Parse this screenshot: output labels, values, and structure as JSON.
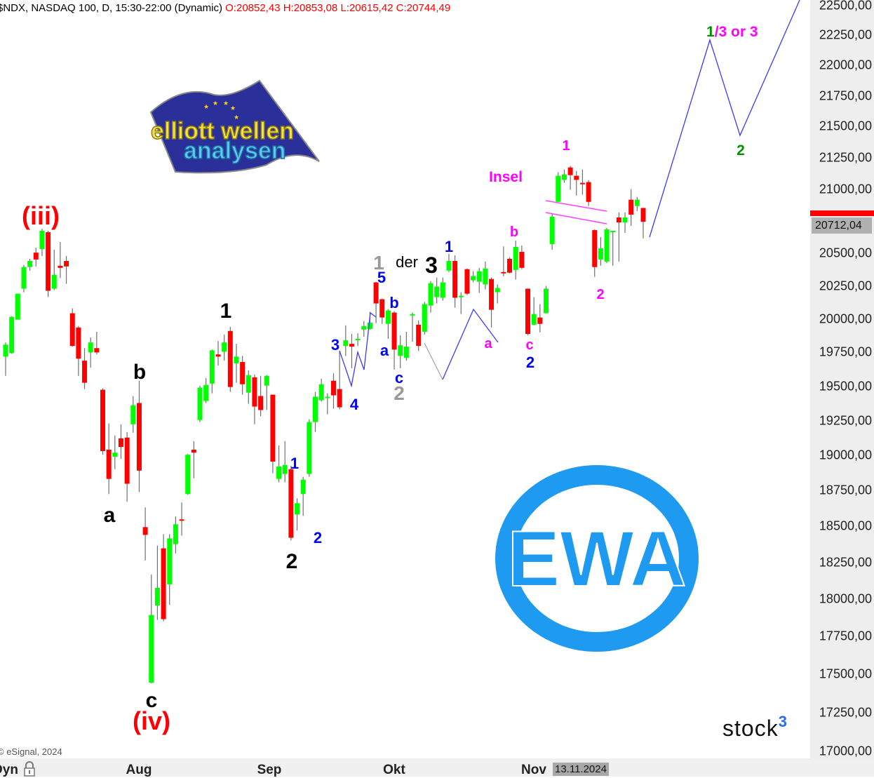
{
  "header": {
    "symbol": "$NDX, NASDAQ 100, D, 15:30-22:00 (Dynamic)",
    "ohlc": "O:20852,43 H:20853,08 L:20615,42 C:20744,49"
  },
  "price_axis": {
    "labels": [
      "22500,00",
      "22250,00",
      "22000,00",
      "21750,00",
      "21500,00",
      "21250,00",
      "21000,00",
      "20500,00",
      "20250,00",
      "20000,00",
      "19750,00",
      "19500,00",
      "19250,00",
      "19000,00",
      "18750,00",
      "18500,00",
      "18250,00",
      "18000,00",
      "17750,00",
      "17500,00",
      "17250,00",
      "17000,00"
    ],
    "last_price": "20712,04"
  },
  "time_axis": {
    "mode": "Dyn",
    "months": [
      "Aug",
      "Sep",
      "Okt",
      "Nov"
    ],
    "cursor_date": "13.11.2024"
  },
  "copyright": "© eSignal, 2024",
  "branding": {
    "logo_text": "elliott wellen analysen",
    "ewa_logo": "EWA",
    "stock3": "stock",
    "stock3_sup": "3"
  },
  "colors": {
    "up": "#00ff00",
    "down": "#ff0000",
    "wick": "#707070",
    "blue": "#0000ff",
    "magenta": "#ff00ff",
    "green": "#009000",
    "gray": "#999999",
    "red": "#ff0000"
  },
  "annotations": {
    "iii": "(iii)",
    "iv": "(iv)",
    "b_black": "b",
    "a_black": "a",
    "c_black": "c",
    "one_black": "1",
    "two_black": "2",
    "one_blue_a": "1",
    "two_blue_a": "2",
    "three_blue": "3",
    "four_blue": "4",
    "five_blue": "5",
    "one_gray": "1",
    "der": "der",
    "three_black": "3",
    "one_blue_b": "1",
    "b_blue": "b",
    "a_blue": "a",
    "c_blue": "c",
    "two_gray": "2",
    "a_magenta": "a",
    "b_magenta": "b",
    "c_magenta": "c",
    "two_blue_b": "2",
    "one_magenta": "1",
    "insel": "Insel",
    "two_magenta": "2",
    "one_green": "1",
    "three_or_three": "/3 or 3",
    "two_green": "2"
  },
  "chart_data": {
    "type": "candlestick",
    "title": "$NDX, NASDAQ 100, D",
    "y_scale": "log",
    "ylim": [
      17000,
      22500
    ],
    "grid": false,
    "x_ticks": [
      "Aug",
      "Sep",
      "Okt",
      "Nov"
    ],
    "ohlc_order": [
      "open",
      "high",
      "low",
      "close"
    ],
    "candles": [
      [
        19719,
        19824,
        19577,
        19808
      ],
      [
        19745,
        20021,
        19740,
        20016
      ],
      [
        19995,
        20191,
        19995,
        20191
      ],
      [
        20229,
        20410,
        20202,
        20394
      ],
      [
        20394,
        20457,
        20367,
        20441
      ],
      [
        20505,
        20543,
        20399,
        20452
      ],
      [
        20533,
        20690,
        20479,
        20674
      ],
      [
        20663,
        20674,
        20165,
        20213
      ],
      [
        20229,
        20527,
        20218,
        20335
      ],
      [
        20404,
        20587,
        20309,
        20388
      ],
      [
        20441,
        20479,
        20266,
        20399
      ],
      [
        20043,
        20080,
        19793,
        19798
      ],
      [
        19936,
        19947,
        19577,
        19704
      ],
      [
        19689,
        19782,
        19480,
        19526
      ],
      [
        19750,
        19862,
        19638,
        19824
      ],
      [
        19782,
        19904,
        19735,
        19750
      ],
      [
        19475,
        19485,
        19005,
        19031
      ],
      [
        19041,
        19230,
        18726,
        18833
      ],
      [
        18990,
        19143,
        18902,
        19020
      ],
      [
        19122,
        19224,
        18976,
        19061
      ],
      [
        19128,
        19168,
        18672,
        18799
      ],
      [
        19224,
        19429,
        19163,
        19362
      ],
      [
        19378,
        19541,
        18740,
        18892
      ],
      [
        18495,
        18632,
        18265,
        18441
      ],
      [
        17445,
        18168,
        17440,
        17894
      ],
      [
        17958,
        18368,
        17861,
        18077
      ],
      [
        18348,
        18446,
        17852,
        17866
      ],
      [
        18101,
        18446,
        17963,
        18417
      ],
      [
        18377,
        18569,
        18313,
        18515
      ],
      [
        18549,
        18667,
        18436,
        18539
      ],
      [
        18726,
        19010,
        18721,
        19005
      ],
      [
        19041,
        19102,
        18838,
        19020
      ],
      [
        19255,
        19505,
        19240,
        19490
      ],
      [
        19393,
        19561,
        19378,
        19510
      ],
      [
        19520,
        19771,
        19449,
        19766
      ],
      [
        19735,
        19835,
        19653,
        19719
      ],
      [
        19755,
        19883,
        19689,
        19824
      ],
      [
        19910,
        19941,
        19459,
        19495
      ],
      [
        19669,
        19814,
        19526,
        19719
      ],
      [
        19679,
        19724,
        19439,
        19515
      ],
      [
        19454,
        19617,
        19372,
        19582
      ],
      [
        19566,
        19587,
        19224,
        19352
      ],
      [
        19429,
        19577,
        19281,
        19327
      ],
      [
        19505,
        19582,
        19327,
        19577
      ],
      [
        19439,
        19439,
        18873,
        18956
      ],
      [
        18833,
        19071,
        18809,
        18922
      ],
      [
        18868,
        19102,
        18809,
        18932
      ],
      [
        18902,
        18926,
        18402,
        18421
      ],
      [
        18583,
        18696,
        18471,
        18662
      ],
      [
        18726,
        18848,
        18574,
        18828
      ],
      [
        18868,
        19260,
        18848,
        19240
      ],
      [
        19240,
        19459,
        19168,
        19424
      ],
      [
        19398,
        19556,
        19388,
        19515
      ],
      [
        19414,
        19449,
        19296,
        19424
      ],
      [
        19541,
        19597,
        19337,
        19434
      ],
      [
        19480,
        19760,
        19332,
        19347
      ],
      [
        19798,
        19952,
        19724,
        19840
      ],
      [
        19814,
        19888,
        19633,
        19793
      ],
      [
        19840,
        19893,
        19798,
        19851
      ],
      [
        19920,
        19984,
        19867,
        19947
      ],
      [
        19925,
        20053,
        19920,
        19973
      ],
      [
        20277,
        20282,
        19968,
        20117
      ],
      [
        20149,
        20154,
        19963,
        20011
      ],
      [
        19963,
        20074,
        19851,
        20064
      ],
      [
        20048,
        20059,
        19623,
        19771
      ],
      [
        19724,
        19878,
        19633,
        19803
      ],
      [
        19709,
        19904,
        19689,
        19793
      ],
      [
        20027,
        20048,
        19830,
        20037
      ],
      [
        19957,
        19989,
        19760,
        19798
      ],
      [
        19904,
        20128,
        19883,
        20112
      ],
      [
        20101,
        20287,
        20048,
        20271
      ],
      [
        20165,
        20314,
        20117,
        20245
      ],
      [
        20160,
        20314,
        20138,
        20277
      ],
      [
        20367,
        20495,
        20356,
        20441
      ],
      [
        20441,
        20484,
        20085,
        20160
      ],
      [
        20170,
        20202,
        20037,
        20175
      ],
      [
        20378,
        20383,
        20181,
        20191
      ],
      [
        20293,
        20362,
        20277,
        20325
      ],
      [
        20282,
        20388,
        20197,
        20362
      ],
      [
        20261,
        20436,
        20223,
        20383
      ],
      [
        20303,
        20314,
        19936,
        20069
      ],
      [
        20202,
        20261,
        20117,
        20234
      ],
      [
        20356,
        20553,
        20324,
        20346
      ],
      [
        20457,
        20468,
        20346,
        20351
      ],
      [
        20372,
        20597,
        20298,
        20549
      ],
      [
        20511,
        20560,
        20378,
        20388
      ],
      [
        20229,
        20229,
        19878,
        19888
      ],
      [
        19957,
        20165,
        19952,
        20037
      ],
      [
        20011,
        20112,
        19899,
        19963
      ],
      [
        20043,
        20250,
        20043,
        20229
      ],
      [
        20571,
        20806,
        20527,
        20784
      ],
      [
        20900,
        21134,
        20900,
        21106
      ],
      [
        21073,
        21156,
        21050,
        21117
      ],
      [
        21172,
        21184,
        20995,
        21111
      ],
      [
        21106,
        21145,
        20950,
        21073
      ],
      [
        21050,
        21156,
        20956,
        21039
      ],
      [
        21056,
        21072,
        20867,
        20900
      ],
      [
        20679,
        20685,
        20319,
        20394
      ],
      [
        20452,
        20625,
        20404,
        20538
      ],
      [
        20436,
        20696,
        20425,
        20685
      ],
      [
        20663,
        20674,
        20404,
        20674
      ],
      [
        20778,
        20817,
        20436,
        20739
      ],
      [
        20739,
        20817,
        20658,
        20778
      ],
      [
        20917,
        21000,
        20712,
        20800
      ],
      [
        20867,
        20939,
        20828,
        20917
      ],
      [
        20852,
        20853,
        20615,
        20744
      ]
    ]
  }
}
